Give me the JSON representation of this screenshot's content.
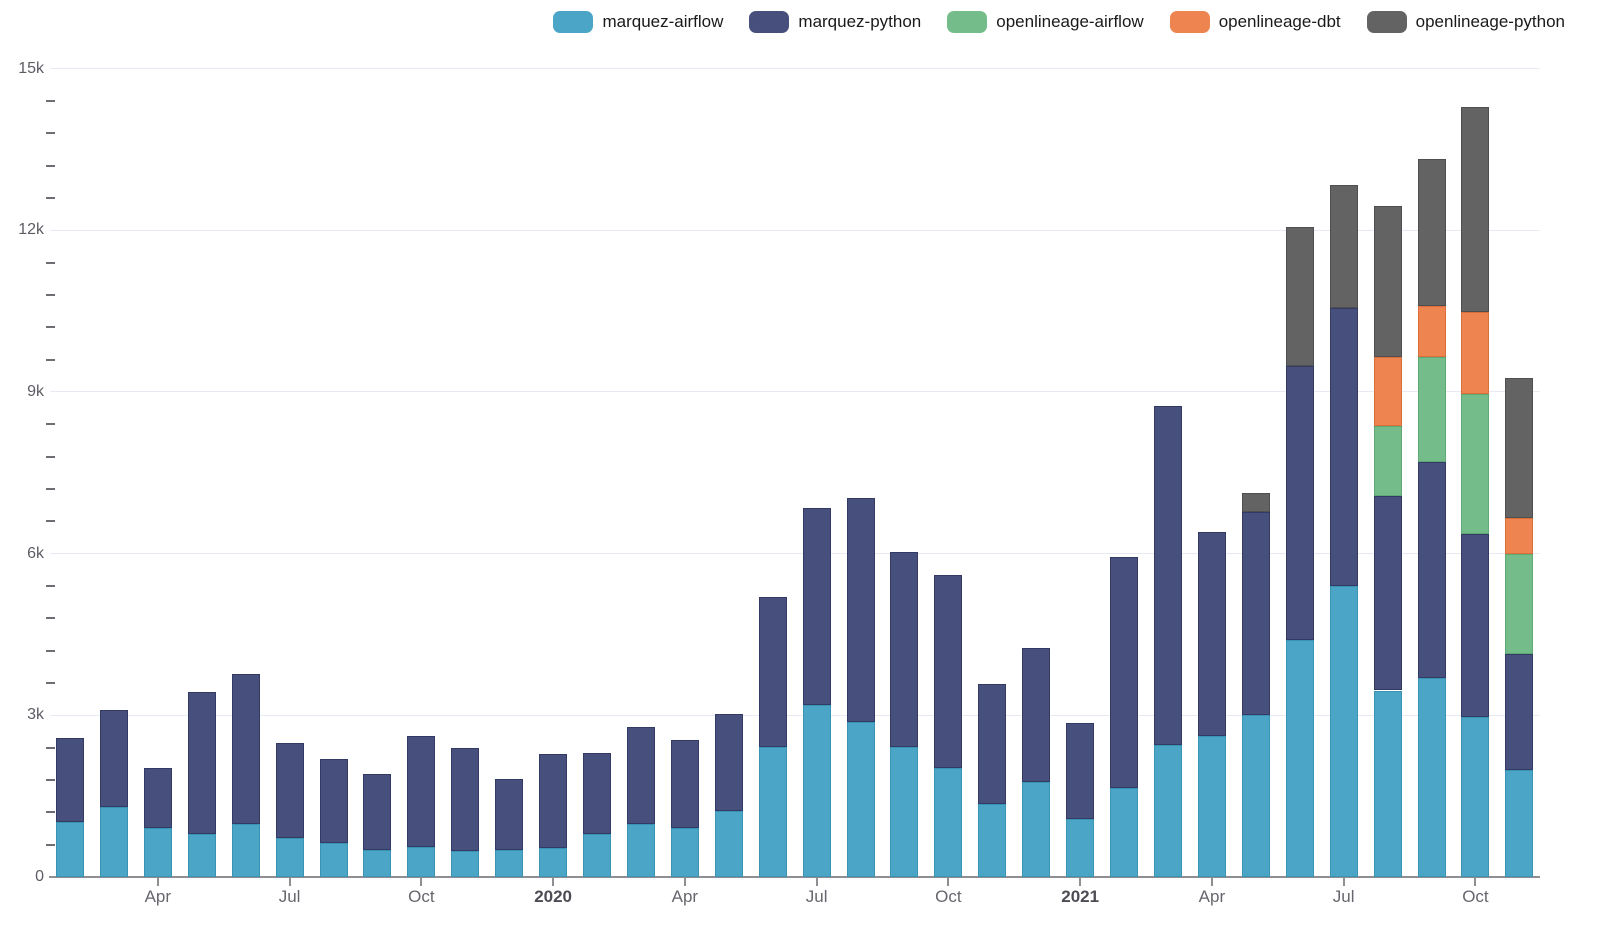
{
  "chart_data": {
    "type": "bar",
    "stacked": true,
    "title": "",
    "legend_position": "top-right",
    "grid": true,
    "ylim": [
      0,
      15000
    ],
    "y_major_step": 3000,
    "y_minor_step": 600,
    "y_tick_labels": [
      "0",
      "3k",
      "6k",
      "9k",
      "12k",
      "15k"
    ],
    "y_tick_values": [
      0,
      3000,
      6000,
      9000,
      12000,
      15000
    ],
    "categories": [
      "Feb 2019",
      "Mar 2019",
      "Apr 2019",
      "May 2019",
      "Jun 2019",
      "Jul 2019",
      "Aug 2019",
      "Sep 2019",
      "Oct 2019",
      "Nov 2019",
      "Dec 2019",
      "Jan 2020",
      "Feb 2020",
      "Mar 2020",
      "Apr 2020",
      "May 2020",
      "Jun 2020",
      "Jul 2020",
      "Aug 2020",
      "Sep 2020",
      "Oct 2020",
      "Nov 2020",
      "Dec 2020",
      "Jan 2021",
      "Feb 2021",
      "Mar 2021",
      "Apr 2021",
      "May 2021",
      "Jun 2021",
      "Jul 2021",
      "Aug 2021",
      "Sep 2021",
      "Oct 2021",
      "Nov 2021"
    ],
    "x_tick_positions": [
      2,
      5,
      8,
      11,
      14,
      17,
      20,
      23,
      26,
      29,
      32
    ],
    "x_tick_labels": [
      "Apr",
      "Jul",
      "Oct",
      "2020",
      "Apr",
      "Jul",
      "Oct",
      "2021",
      "Apr",
      "Jul",
      "Oct"
    ],
    "x_tick_bold": [
      false,
      false,
      false,
      true,
      false,
      false,
      false,
      true,
      false,
      false,
      false
    ],
    "series": [
      {
        "name": "marquez-airflow",
        "color": "#4aa5c7",
        "border_color": "#3b93b3",
        "values": [
          1020,
          1290,
          900,
          800,
          990,
          730,
          640,
          500,
          560,
          475,
          510,
          545,
          790,
          985,
          905,
          1220,
          2410,
          3195,
          2870,
          2410,
          2020,
          1360,
          1765,
          1085,
          1660,
          2440,
          2610,
          3000,
          4400,
          5390,
          3460,
          3690,
          2965,
          1980
        ]
      },
      {
        "name": "marquez-python",
        "color": "#474f7d",
        "border_color": "#333a63",
        "values": [
          1555,
          1800,
          1120,
          2630,
          2785,
          1755,
          1555,
          1420,
          2050,
          1925,
          1315,
          1730,
          1505,
          1790,
          1630,
          1795,
          2790,
          3645,
          4170,
          3620,
          3580,
          2215,
          2490,
          1775,
          4285,
          6305,
          3790,
          3780,
          5085,
          5160,
          3605,
          4010,
          3405,
          2160
        ]
      },
      {
        "name": "openlineage-airflow",
        "color": "#74bd8a",
        "border_color": "#5fa976",
        "values": [
          0,
          0,
          0,
          0,
          0,
          0,
          0,
          0,
          0,
          0,
          0,
          0,
          0,
          0,
          0,
          0,
          0,
          0,
          0,
          0,
          0,
          0,
          0,
          0,
          0,
          0,
          0,
          0,
          0,
          0,
          1295,
          1955,
          2600,
          1860
        ]
      },
      {
        "name": "openlineage-dbt",
        "color": "#ee8450",
        "border_color": "#d9703c",
        "values": [
          0,
          0,
          0,
          0,
          0,
          0,
          0,
          0,
          0,
          0,
          0,
          0,
          0,
          0,
          0,
          0,
          0,
          0,
          0,
          0,
          0,
          0,
          0,
          0,
          0,
          0,
          0,
          0,
          0,
          0,
          1285,
          945,
          1510,
          665
        ]
      },
      {
        "name": "openlineage-python",
        "color": "#636363",
        "border_color": "#4f4f4f",
        "values": [
          0,
          0,
          0,
          0,
          0,
          0,
          0,
          0,
          0,
          0,
          0,
          0,
          0,
          0,
          0,
          0,
          0,
          0,
          0,
          0,
          0,
          0,
          0,
          0,
          0,
          0,
          0,
          340,
          2575,
          2285,
          2805,
          2730,
          3800,
          2590
        ]
      }
    ]
  }
}
